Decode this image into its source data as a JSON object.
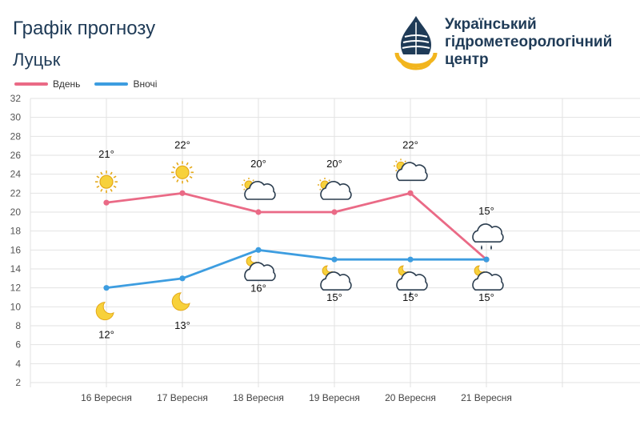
{
  "header": {
    "title": "Графік прогнозу",
    "city": "Луцьк",
    "org_lines": [
      "Український",
      "гідрометеорологічний",
      "центр"
    ]
  },
  "legend": {
    "day_label": "Вдень",
    "night_label": "Вночі"
  },
  "colors": {
    "day": "#ea6a86",
    "night": "#3d9de0",
    "grid": "#e2e2e2",
    "text": "#1f3b57"
  },
  "chart_data": {
    "type": "line",
    "categories": [
      "16 Вересня",
      "17 Вересня",
      "18 Вересня",
      "19 Вересня",
      "20 Вересня",
      "21 Вересня"
    ],
    "series": [
      {
        "name": "Вдень",
        "values": [
          21,
          22,
          20,
          20,
          22,
          15
        ],
        "labels": [
          "21°",
          "22°",
          "20°",
          "20°",
          "22°",
          "15°"
        ],
        "icons": [
          "sun-icon",
          "sun-icon",
          "partly-cloudy-icon",
          "partly-cloudy-icon",
          "partly-cloudy-icon",
          "cloud-rain-icon"
        ]
      },
      {
        "name": "Вночі",
        "values": [
          12,
          13,
          16,
          15,
          15,
          15
        ],
        "labels": [
          "12°",
          "13°",
          "16°",
          "15°",
          "15°",
          "15°"
        ],
        "icons": [
          "moon-icon",
          "moon-icon",
          "night-cloudy-icon",
          "night-cloudy-icon",
          "night-cloudy-rain-icon",
          "night-cloudy-icon"
        ]
      }
    ],
    "ylim": [
      2,
      32
    ],
    "yticks": [
      2,
      4,
      6,
      8,
      10,
      12,
      14,
      16,
      18,
      20,
      22,
      24,
      26,
      28,
      30,
      32
    ],
    "grid": true,
    "legend_position": "top-left"
  }
}
